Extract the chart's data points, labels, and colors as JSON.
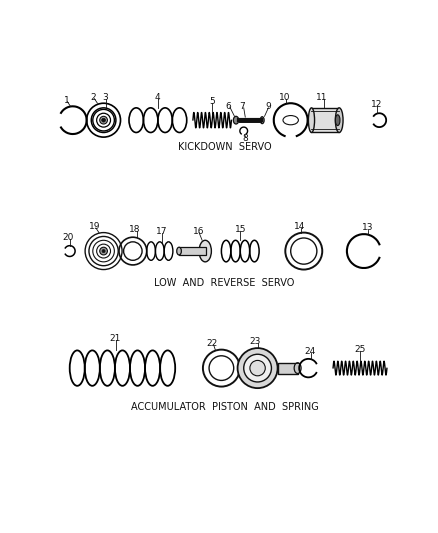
{
  "background_color": "#ffffff",
  "section1_label": "KICKDOWN  SERVO",
  "section2_label": "LOW  AND  REVERSE  SERVO",
  "section3_label": "ACCUMULATOR  PISTON  AND  SPRING",
  "label_fontsize": 7,
  "number_fontsize": 6.5
}
